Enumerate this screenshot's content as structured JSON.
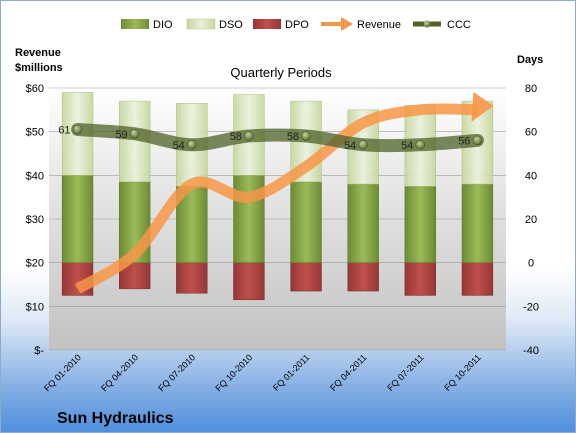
{
  "chart_data": {
    "type": "bar",
    "title": "Quarterly Periods",
    "company": "Sun Hydraulics",
    "left_axis": {
      "title_line1": "Revenue",
      "title_line2": "$millions",
      "ticks": [
        "$-",
        "$10",
        "$20",
        "$30",
        "$40",
        "$50",
        "$60"
      ],
      "range": [
        0,
        60
      ]
    },
    "right_axis": {
      "title": "Days",
      "ticks": [
        "-40",
        "-20",
        "0",
        "20",
        "40",
        "60",
        "80"
      ],
      "range": [
        -40,
        80
      ]
    },
    "categories": [
      "FQ 01-2010",
      "FQ 04-2010",
      "FQ 07-2010",
      "FQ 10-2010",
      "FQ 01-2011",
      "FQ 04-2011",
      "FQ 07-2011",
      "FQ 10-2011"
    ],
    "series": [
      {
        "name": "DIO",
        "axis": "right",
        "color": "#76923c",
        "values": [
          40,
          37,
          35,
          40,
          37,
          36,
          35,
          36
        ]
      },
      {
        "name": "DSO",
        "axis": "right",
        "color": "#d7e4bd",
        "values": [
          38,
          37,
          38,
          37,
          37,
          34,
          37,
          38
        ]
      },
      {
        "name": "DPO",
        "axis": "right",
        "color": "#c0504d",
        "values": [
          -15,
          -12,
          -14,
          -17,
          -13,
          -13,
          -15,
          -15
        ]
      },
      {
        "name": "Revenue",
        "axis": "left",
        "color": "#f79646",
        "values": [
          14,
          22,
          38,
          35,
          42,
          52,
          55,
          55
        ]
      },
      {
        "name": "CCC",
        "axis": "right",
        "color": "#4f6228",
        "values": [
          61,
          59,
          54,
          58,
          58,
          54,
          54,
          56
        ]
      }
    ],
    "ccc_labels": [
      "61",
      "59",
      "54",
      "58",
      "58",
      "54",
      "54",
      "56"
    ]
  }
}
